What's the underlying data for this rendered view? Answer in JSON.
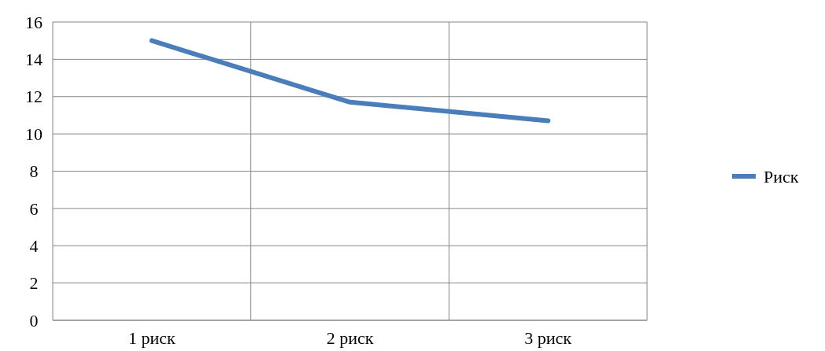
{
  "chart_data": {
    "type": "line",
    "categories": [
      "1 риск",
      "2 риск",
      "3 риск"
    ],
    "series": [
      {
        "name": "Риск",
        "color": "#4a7ebb",
        "values": [
          15,
          11.7,
          10.7
        ]
      }
    ],
    "ylim": [
      0,
      16
    ],
    "yticks": [
      0,
      2,
      4,
      6,
      8,
      10,
      12,
      14,
      16
    ],
    "grid": true,
    "legend": "right",
    "marker": "none"
  }
}
